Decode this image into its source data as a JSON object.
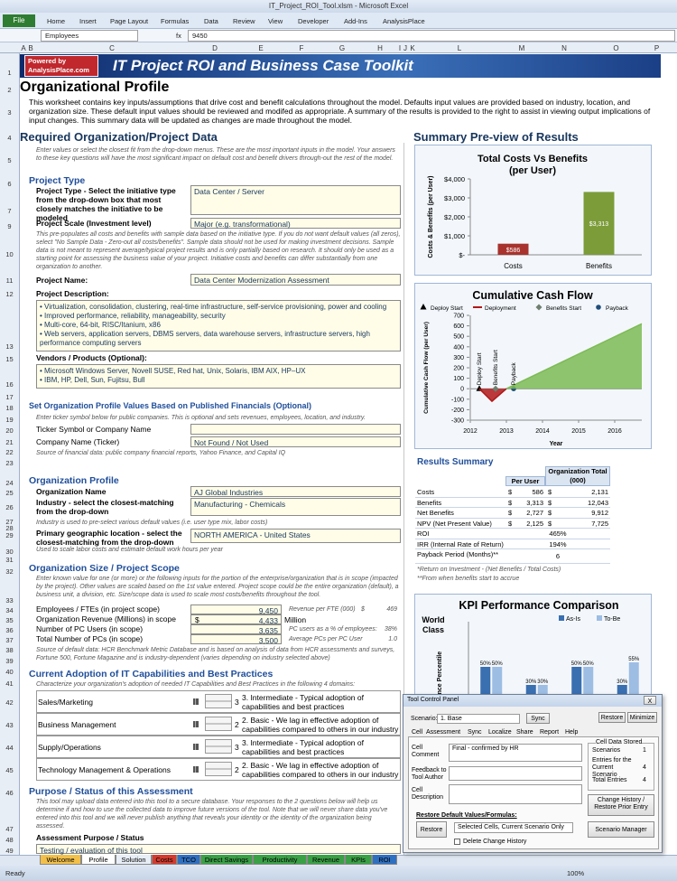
{
  "window": {
    "title": "IT_Project_ROI_Tool.xlsm - Microsoft Excel"
  },
  "ribbon": {
    "file": "File",
    "tabs": [
      "Home",
      "Insert",
      "Page Layout",
      "Formulas",
      "Data",
      "Review",
      "View",
      "Developer",
      "Add-Ins",
      "AnalysisPlace"
    ]
  },
  "formula_bar": {
    "name_box": "Employees",
    "function": "fx",
    "value": "9450"
  },
  "column_headers": [
    "A",
    "B",
    "C",
    "D",
    "E",
    "F",
    "G",
    "H",
    "I",
    "J",
    "K",
    "L",
    "M",
    "N",
    "O",
    "P"
  ],
  "row_headers": [
    "1",
    "2",
    "3",
    "4",
    "5",
    "6",
    "7",
    "9",
    "10",
    "11",
    "12",
    "13",
    "15",
    "16",
    "17",
    "18",
    "19",
    "20",
    "21",
    "22",
    "23",
    "24",
    "25",
    "26",
    "27",
    "28",
    "29",
    "30",
    "31",
    "32",
    "33",
    "34",
    "35",
    "36",
    "37",
    "38",
    "39",
    "40",
    "41",
    "42",
    "43",
    "44",
    "45",
    "46",
    "47",
    "48",
    "49"
  ],
  "banner": {
    "powered_by": "Powered by",
    "site": "AnalysisPlace.com",
    "title": "IT Project ROI and Business Case Toolkit"
  },
  "profile": {
    "title": "Organizational Profile",
    "intro": "This worksheet contains key inputs/assumptions that drive cost and benefit calculations throughout the model.  Defaults input values are provided based on industry, location, and organization size.  These default input values should be reviewed and modifed as appropriate.  A summary of the results is provided to the right to assist in viewing output implications of input changes.  This summary data will be updated as changes are made throughout the model."
  },
  "required": {
    "title": "Required Organization/Project Data",
    "instructions": "Enter values or select the closest fit from the drop-down menus.  These are the most important inputs in the model.  Your answers to these key questions will have the most significant impact on default cost and benefit drivers through-out the rest of the model."
  },
  "project_type": {
    "heading": "Project Type",
    "label": "Project Type - Select the initiative type from the drop-down box that most closely matches the initiative to be modeled",
    "value": "Data Center / Server",
    "scale_label": "Project Scale (Investment level)",
    "scale_value": "Major (e.g. transformational)",
    "scale_note": "This pre-populates all costs and benefits with sample data based on the initiative type.  If you do not want default values (all zeros), select \"No Sample Data - Zero-out all costs/benefits\".  Sample data should not be used for making investment decisions.  Sample data is not meant to represent average/typical project results and is only partially based on research.  It should only be used as a starting point for assessing the business value of your project.  Initiative costs and benefits can differ substantially from one organization to another.",
    "name_label": "Project Name:",
    "name_value": "Data Center Modernization Assessment",
    "description_label": "Project Description:",
    "description": [
      "• Virtualization, consolidation, clustering, real-time infrastructure, self-service provisioning, power and cooling",
      "• Improved performance, reliability, manageability, security",
      "• Multi-core, 64-bit, RISC/Itanium, x86",
      "• Web servers, application servers, DBMS servers, data warehouse servers, infrastructure servers, high performance computing servers"
    ],
    "vendors_label": "Vendors / Products (Optional):",
    "vendors": [
      "• Microsoft Windows Server, Novell SUSE, Red hat, Unix, Solaris, IBM AIX, HP–UX",
      "• IBM, HP, Dell, Sun, Fujitsu, Bull"
    ]
  },
  "financials": {
    "heading": "Set Organization Profile Values Based on Published Financials (Optional)",
    "instructions": "Enter ticker symbol below for public companies. This is optional and sets revenues, employees, location, and industry.",
    "ticker_label": "Ticker Symbol or Company Name",
    "company_label": "Company Name (Ticker)",
    "company_value": "Not Found / Not Used",
    "source": "Source of financial data: public company financial reports, Yahoo Finance, and Capital IQ"
  },
  "org_profile": {
    "heading": "Organization Profile",
    "name_label": "Organization Name",
    "name_value": "AJ Global Industries",
    "industry_label": "Industry - select the closest-matching from the drop-down",
    "industry_value": "Manufacturing - Chemicals",
    "industry_note": "Industry is used to pre-select various default values (i.e. user type mix, labor costs)",
    "location_label": "Primary geographic location - select the closest-matching from the drop-down",
    "location_value": "NORTH AMERICA - United States",
    "location_note": "Used to scale labor costs and estimate default work hours per year"
  },
  "org_size": {
    "heading": "Organization Size / Project Scope",
    "instructions": "Enter known value for one (or more) or the following inputs for the portion of the enterprise/organization that is in scope (impacted by the project).  Other values are scaled based on the 1st value entered.  Project scope could be the entire organization (default), a business unit, a division, etc. Size/scope data is used to scale most costs/benefits throughout the tool.",
    "rows": [
      {
        "label": "Employees / FTEs (in project scope)",
        "value": "9,450",
        "note": "Revenue per FTE (000)",
        "note_currency": "$",
        "note_value": "469"
      },
      {
        "label": "Organization Revenue (Millions) in scope",
        "currency": "$",
        "value": "4,433",
        "unit": "Million"
      },
      {
        "label": "Number of PC Users (in scope)",
        "value": "3,635",
        "note": "PC users as a % of employees:",
        "note_value": "38%"
      },
      {
        "label": "Total Number of PCs (in scope)",
        "value": "3,500",
        "note": "Average PCs per PC User",
        "note_value": "1.0"
      }
    ],
    "source": "Source of default data:  HCR Benchmark Metric Database and is based on analysis of data from HCR assessments and surveys, Fortune 500, Fortune Magazine and is industry-dependent (varies depending on industry selected above)"
  },
  "capabilities": {
    "heading": "Current Adoption of IT Capabilities and Best Practices",
    "instructions": "Characterize your organization's adoption of needed IT Capabilities and Best Practices in the following 4 domains:",
    "rows": [
      {
        "domain": "Sales/Marketing",
        "level": "3",
        "description": "3. Intermediate - Typical adoption of capabilities and best practices"
      },
      {
        "domain": "Business Management",
        "level": "2",
        "description": "2. Basic - We lag in effective adoption of capabilities compared to others in our industry"
      },
      {
        "domain": "Supply/Operations",
        "level": "3",
        "description": "3. Intermediate - Typical adoption of capabilities and best practices"
      },
      {
        "domain": "Technology Management & Operations",
        "level": "2",
        "description": "2. Basic - We lag in effective adoption of capabilities compared to others in our industry"
      }
    ]
  },
  "purpose": {
    "heading": "Purpose / Status of this Assessment",
    "text": "This tool may upload data entered into this tool to a secure database.  Your responses to the 2 questions below will help us determine if and how to use the collected data to improve future versions of the tool.  Note that we will never share data you've entered into this tool and we will never publish anything that reveals your identity or the identity of the organization being assessed.",
    "status_label": "Assessment Purpose / Status",
    "status_value": "Testing / evaluation of this tool"
  },
  "summary": {
    "title": "Summary Pre-view of Results"
  },
  "chart_data": [
    {
      "type": "bar",
      "title": "Total Costs Vs Benefits",
      "subtitle": "(per User)",
      "y_label": "Costs & Benefits (per User)",
      "categories": [
        "Costs",
        "Benefits"
      ],
      "values": [
        586,
        3313
      ],
      "value_labels": [
        "$586",
        "$3,313"
      ],
      "colors": [
        "#a8322d",
        "#7c9c3a"
      ],
      "ylim": [
        0,
        4000
      ],
      "yticks": [
        {
          "value": 0,
          "label": "$-"
        },
        {
          "value": 1000,
          "label": "$1,000"
        },
        {
          "value": 2000,
          "label": "$2,000"
        },
        {
          "value": 3000,
          "label": "$3,000"
        },
        {
          "value": 4000,
          "label": "$4,000"
        }
      ]
    },
    {
      "type": "line",
      "title": "Cumulative Cash Flow",
      "x_label": "Year",
      "y_label": "Cumulative Cash Flow (per User)",
      "xlim": [
        2012,
        2016.75
      ],
      "xticks": [
        2012,
        2013,
        2014,
        2015,
        2016
      ],
      "ylim": [
        -300,
        700
      ],
      "yticks": [
        -300,
        -200,
        -100,
        0,
        100,
        200,
        300,
        400,
        500,
        600,
        700
      ],
      "series": [
        {
          "name": "Deploy Start",
          "marker": "triangle",
          "color": "#000000",
          "x": [
            2012.25
          ],
          "values": [
            0
          ]
        },
        {
          "name": "Deployment",
          "color": "#b01818",
          "fill": true,
          "x": [
            2012.25,
            2012.6,
            2013
          ],
          "values": [
            0,
            -120,
            0
          ]
        },
        {
          "name": "Benefits Start",
          "marker": "diamond",
          "color": "#6f7f6f",
          "x": [
            2012.7
          ],
          "values": [
            0
          ]
        },
        {
          "name": "Payback",
          "marker": "circle",
          "color": "#1f4e79",
          "x": [
            2013.2
          ],
          "values": [
            0
          ]
        },
        {
          "color": "#7dbb55",
          "fill": true,
          "x": [
            2013,
            2016.75
          ],
          "values": [
            0,
            620
          ]
        }
      ],
      "annotations": [
        "Deploy Start",
        "Benefits Start",
        "Payback"
      ]
    },
    {
      "type": "grouped_bar",
      "title": "KPI Performance Comparison",
      "y_label": "Performance Percentile",
      "annotation": "World Class",
      "ylim": [
        0,
        100
      ],
      "series": [
        {
          "name": "As-Is",
          "color": "#3a6fb0",
          "values": [
            50,
            30,
            50,
            30
          ],
          "value_labels": [
            "50%",
            "30%",
            "50%",
            "30%"
          ]
        },
        {
          "name": "To-Be",
          "color": "#9dbde3",
          "values": [
            50,
            30,
            50,
            55
          ],
          "value_labels": [
            "50%",
            "30%",
            "50%",
            "55%"
          ]
        }
      ]
    }
  ],
  "results": {
    "title": "Results Summary",
    "headers": [
      "Per User",
      "Organization Total (000)"
    ],
    "rows": [
      [
        "Costs",
        "$",
        "586",
        "$",
        "2,131"
      ],
      [
        "Benefits",
        "$",
        "3,313",
        "$",
        "12,043"
      ],
      [
        "Net Benefits",
        "$",
        "2,727",
        "$",
        "9,912"
      ],
      [
        "NPV (Net Present Value)",
        "$",
        "2,125",
        "$",
        "7,725"
      ],
      [
        "ROI",
        "465%"
      ],
      [
        "IRR (Internal Rate of Return)",
        "194%"
      ],
      [
        "Payback Period (Months)**",
        "6"
      ]
    ],
    "notes": [
      "*Return on Investment - (Net Benefits / Total Costs)",
      "**From when benefits start to accrue"
    ]
  },
  "dialog": {
    "title": "Tool Control Panel",
    "close": "X",
    "scenario_label": "Scenario:",
    "scenario_value": "1. Base",
    "sync": "Sync",
    "restore_top": "Restore",
    "minimize": "Minimize",
    "tabs": [
      "Cell",
      "Assessment",
      "Sync",
      "Localize",
      "Share",
      "Report",
      "Help"
    ],
    "comment_label": "Cell Comment",
    "comment_value": "Final - confirmed by HR",
    "feedback_label": "Feedback to Tool Author",
    "description_label": "Cell Description",
    "stored_title": "Cell Data Stored",
    "stored_rows": [
      [
        "Scenarios",
        "1"
      ],
      [
        "Entries for the Current Scenario",
        "4"
      ],
      [
        "Total Entries",
        "4"
      ]
    ],
    "change_history": "Change History / Restore Prior Entry",
    "restore_heading": "Restore Default Values/Formulas:",
    "restore_button": "Restore",
    "restore_scope": "Selected Cells, Current Scenario Only",
    "delete_history": "Delete Change History",
    "scenario_manager": "Scenario Manager"
  },
  "sheet_tabs": [
    "Welcome",
    "Profile",
    "Solution",
    "Costs",
    "TCO",
    "Direct Savings",
    "Productivity",
    "Revenue",
    "KPIs",
    "ROI"
  ],
  "status": {
    "ready": "Ready",
    "zoom": "100%"
  }
}
